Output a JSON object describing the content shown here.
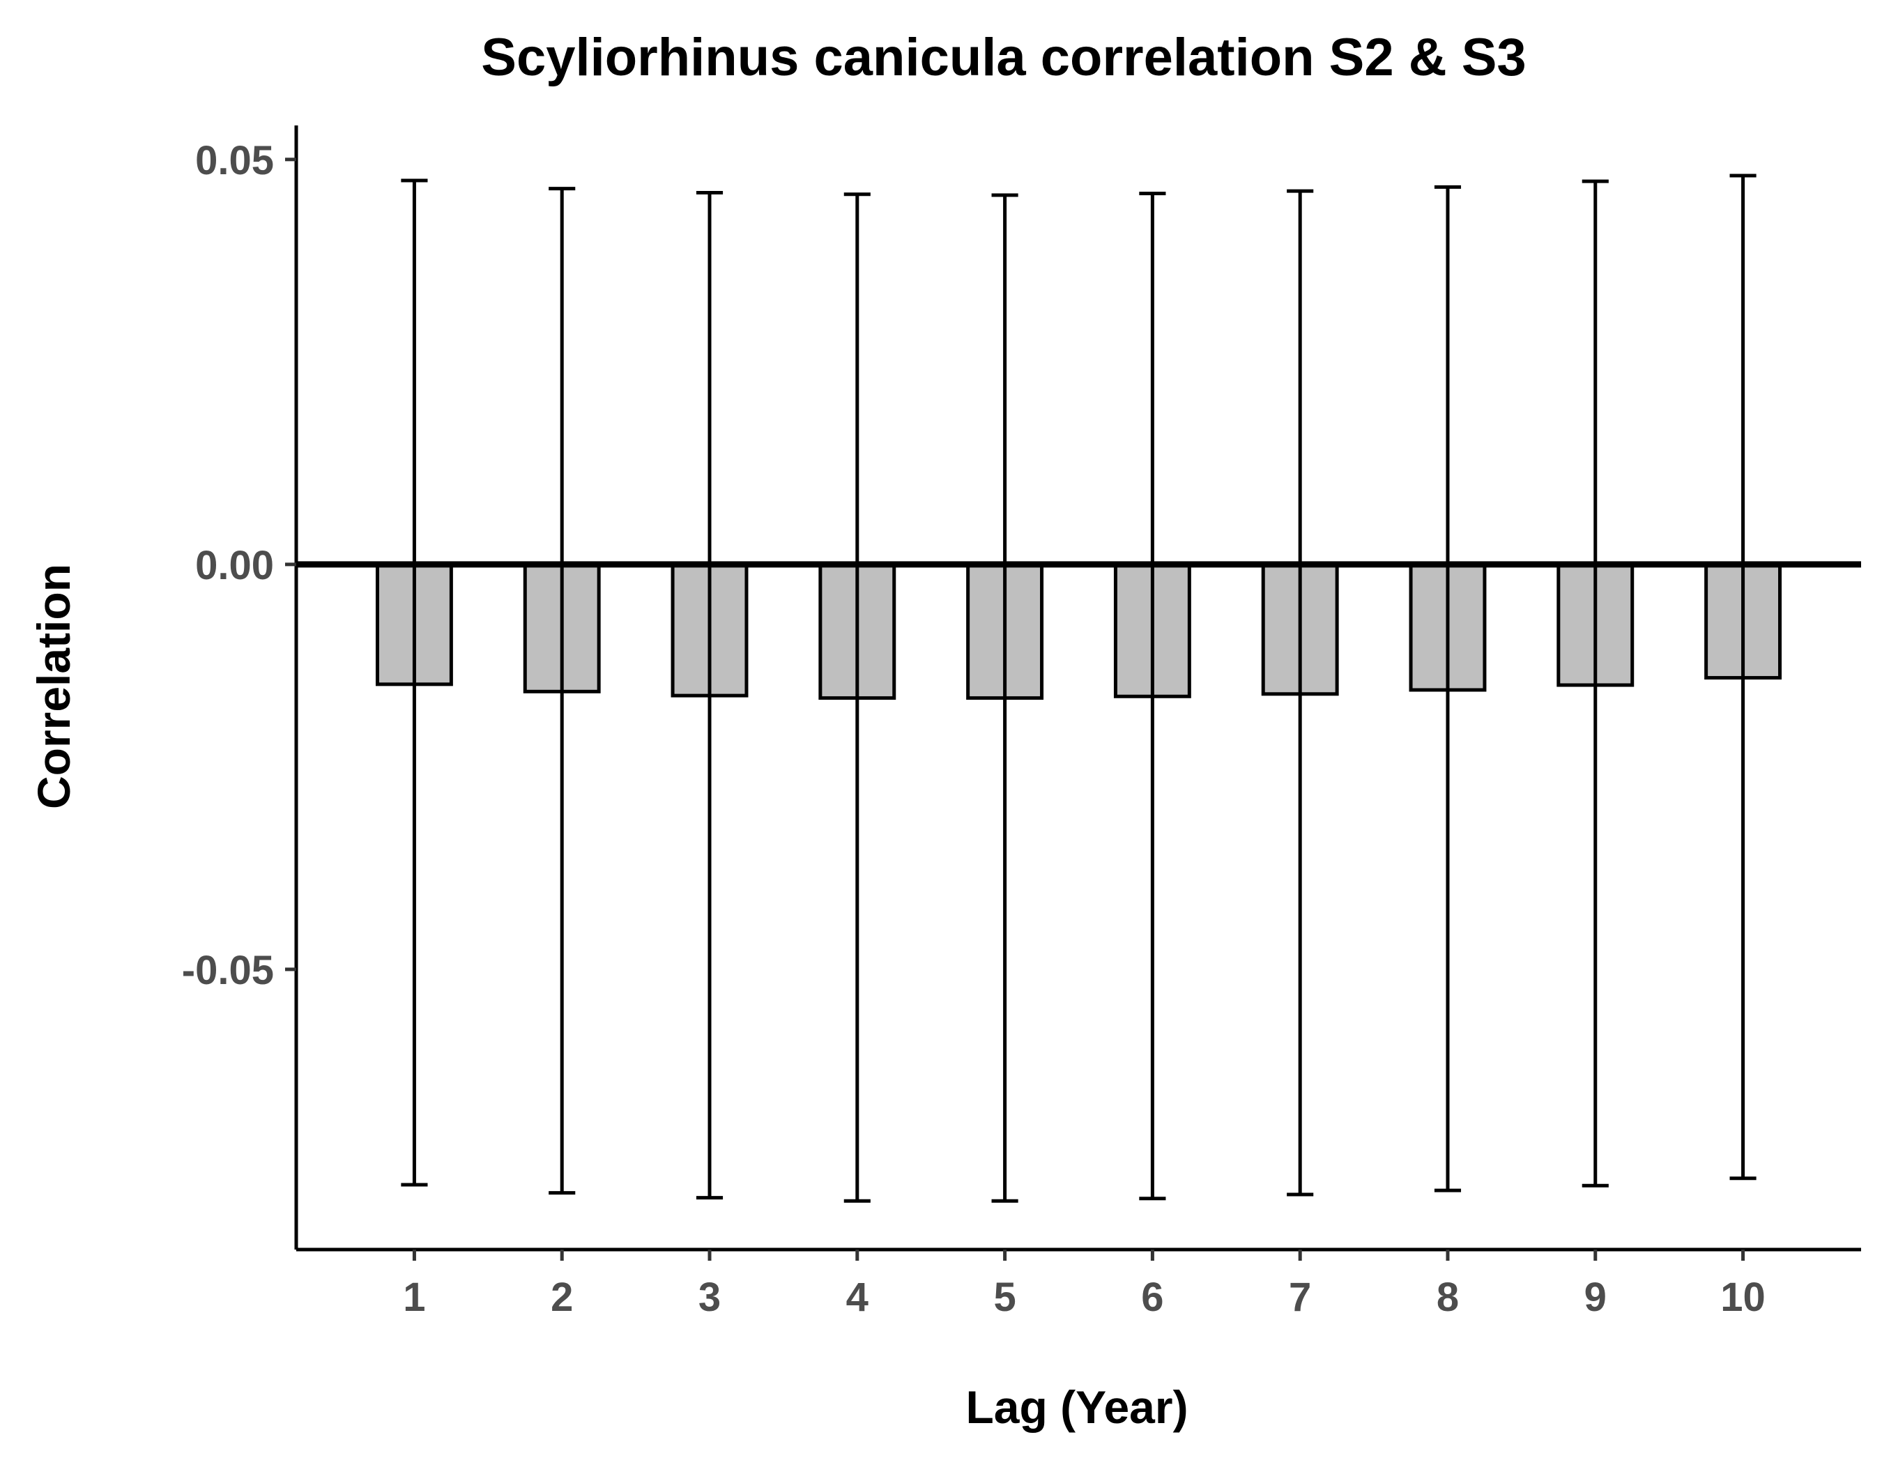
{
  "chart_data": {
    "type": "bar",
    "title": "Scyliorhinus canicula correlation S2 & S3",
    "xlabel": "Lag (Year)",
    "ylabel": "Correlation",
    "categories": [
      "1",
      "2",
      "3",
      "4",
      "5",
      "6",
      "7",
      "8",
      "9",
      "10"
    ],
    "values": [
      -0.0148,
      -0.0157,
      -0.0162,
      -0.0165,
      -0.0165,
      -0.0163,
      -0.016,
      -0.0155,
      -0.0149,
      -0.014
    ],
    "error_upper": [
      0.0474,
      0.0464,
      0.0459,
      0.0457,
      0.0456,
      0.0458,
      0.0461,
      0.0466,
      0.0473,
      0.048
    ],
    "error_lower": [
      -0.0766,
      -0.0776,
      -0.0782,
      -0.0786,
      -0.0786,
      -0.0783,
      -0.0778,
      -0.0773,
      -0.0767,
      -0.0758
    ],
    "ylim": [
      -0.0846,
      0.0542
    ],
    "yticks": [
      -0.05,
      0.0,
      0.05
    ],
    "ytick_labels": [
      "-0.05",
      "0.00",
      "0.05"
    ],
    "reference_line": 0.0,
    "grid": false,
    "legend": "none",
    "bar_fill": "#bfbfbf",
    "bar_stroke": "#000000"
  }
}
